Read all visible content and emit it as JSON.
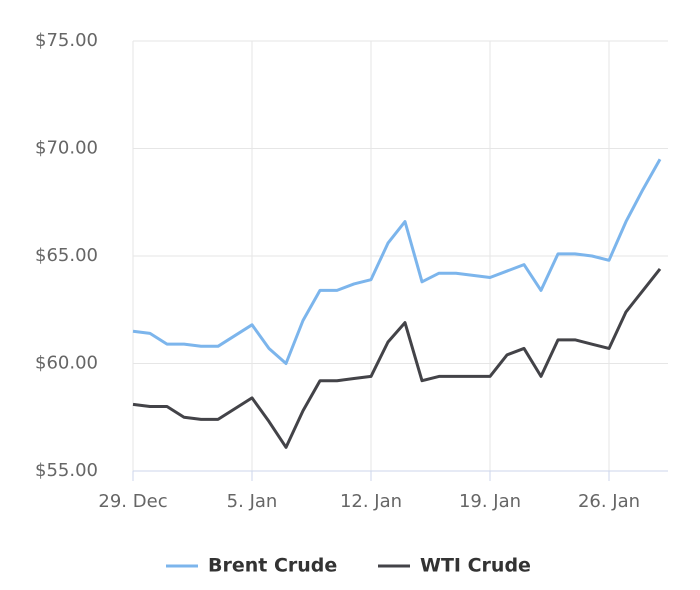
{
  "chart_data": {
    "type": "line",
    "categories": [
      "29. Dec",
      null,
      null,
      null,
      null,
      null,
      null,
      "5. Jan",
      null,
      null,
      null,
      null,
      null,
      null,
      "12. Jan",
      null,
      null,
      null,
      null,
      null,
      null,
      "19. Jan",
      null,
      null,
      null,
      null,
      null,
      null,
      "26. Jan",
      null,
      null,
      null
    ],
    "series": [
      {
        "name": "Brent Crude",
        "color": "#7cb5ec",
        "values": [
          61.5,
          61.4,
          60.9,
          60.9,
          60.8,
          60.8,
          61.3,
          61.8,
          60.7,
          60.0,
          62.0,
          63.4,
          63.4,
          63.7,
          63.9,
          65.6,
          66.6,
          63.8,
          64.2,
          64.2,
          64.1,
          64.0,
          64.3,
          64.6,
          63.4,
          65.1,
          65.1,
          65.0,
          64.8,
          66.6,
          68.1,
          69.5
        ]
      },
      {
        "name": "WTI Crude",
        "color": "#434348",
        "values": [
          58.1,
          58.0,
          58.0,
          57.5,
          57.4,
          57.4,
          57.9,
          58.4,
          57.3,
          56.1,
          57.8,
          59.2,
          59.2,
          59.3,
          59.4,
          61.0,
          61.9,
          59.2,
          59.4,
          59.4,
          59.4,
          59.4,
          60.4,
          60.7,
          59.4,
          61.1,
          61.1,
          60.9,
          60.7,
          62.4,
          63.4,
          64.4
        ]
      }
    ],
    "ylim": [
      55,
      75
    ],
    "yticks": [
      {
        "value": 55,
        "label": "$55.00"
      },
      {
        "value": 60,
        "label": "$60.00"
      },
      {
        "value": 65,
        "label": "$65.00"
      },
      {
        "value": 70,
        "label": "$70.00"
      },
      {
        "value": 75,
        "label": "$75.00"
      }
    ],
    "grid": true,
    "legend": "bottom"
  }
}
